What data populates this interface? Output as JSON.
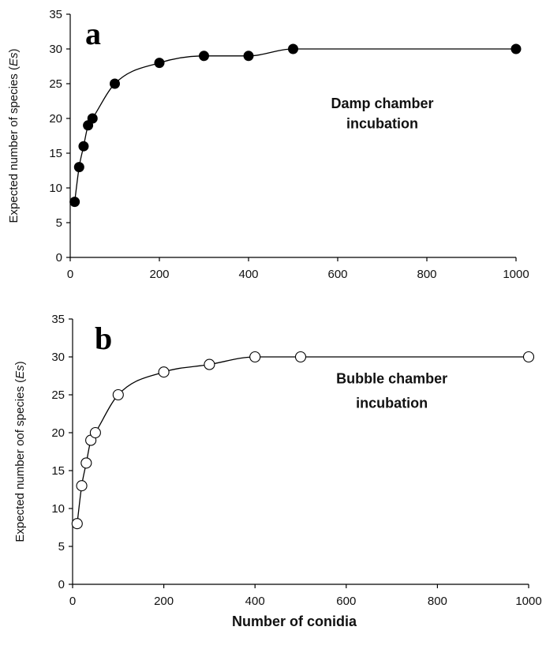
{
  "chart_data": [
    {
      "type": "line",
      "panel_label": "a",
      "annotation_lines": [
        "Damp chamber",
        "incubation"
      ],
      "ylabel_prefix": "Expected number of species (",
      "ylabel_italic": "Es",
      "ylabel_suffix": ")",
      "xlabel": "",
      "x": [
        10,
        20,
        30,
        40,
        50,
        100,
        200,
        300,
        400,
        500,
        1000
      ],
      "y": [
        8,
        13,
        16,
        19,
        20,
        25,
        28,
        29,
        29,
        30,
        30
      ],
      "xlim": [
        0,
        1000
      ],
      "ylim": [
        0,
        35
      ],
      "xticks": [
        0,
        200,
        400,
        600,
        800,
        1000
      ],
      "yticks": [
        0,
        5,
        10,
        15,
        20,
        25,
        30,
        35
      ],
      "marker": "filled-circle",
      "marker_color": "#000000",
      "line_color": "#000000",
      "grid": false,
      "annotation_x": 700,
      "annotation_y": [
        21.5,
        18.6
      ]
    },
    {
      "type": "line",
      "panel_label": "b",
      "annotation_lines": [
        "Bubble chamber",
        "incubation"
      ],
      "ylabel_prefix": "Expected number oof species (",
      "ylabel_italic": "Es",
      "ylabel_suffix": ")",
      "xlabel": "Number of conidia",
      "x": [
        10,
        20,
        30,
        40,
        50,
        100,
        200,
        300,
        400,
        500,
        1000
      ],
      "y": [
        8,
        13,
        16,
        19,
        20,
        25,
        28,
        29,
        30,
        30,
        30
      ],
      "xlim": [
        0,
        1000
      ],
      "ylim": [
        0,
        35
      ],
      "xticks": [
        0,
        200,
        400,
        600,
        800,
        1000
      ],
      "yticks": [
        0,
        5,
        10,
        15,
        20,
        25,
        30,
        35
      ],
      "marker": "open-circle",
      "marker_color": "#000000",
      "line_color": "#000000",
      "grid": false,
      "annotation_x": 700,
      "annotation_y": [
        26.5,
        23.3
      ]
    }
  ]
}
